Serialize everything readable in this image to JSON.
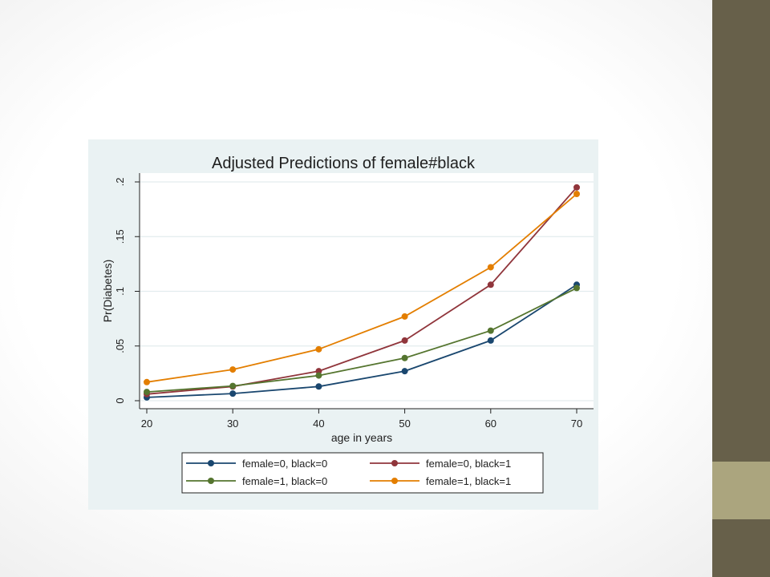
{
  "slide": {
    "band_color": "#67604a",
    "accent_color": "#aba57e"
  },
  "chart_data": {
    "type": "line",
    "title": "Adjusted Predictions of female#black",
    "xlabel": "age in years",
    "ylabel": "Pr(Diabetes)",
    "xlim": [
      20,
      70
    ],
    "ylim": [
      0,
      0.2
    ],
    "x_ticks": [
      20,
      30,
      40,
      50,
      60,
      70
    ],
    "y_ticks": [
      0,
      0.05,
      0.1,
      0.15,
      0.2
    ],
    "x_tick_labels": [
      "20",
      "30",
      "40",
      "50",
      "60",
      "70"
    ],
    "y_tick_labels": [
      "0",
      ".05",
      ".1",
      ".15",
      ".2"
    ],
    "grid": true,
    "legend_position": "bottom",
    "plot_background": "#ffffff",
    "outer_background": "#eaf2f3",
    "x": [
      20,
      30,
      40,
      50,
      60,
      70
    ],
    "series": [
      {
        "name": "female=0, black=0",
        "color": "#1a476f",
        "marker": "circle",
        "values": [
          0.003,
          0.0065,
          0.013,
          0.027,
          0.055,
          0.106
        ]
      },
      {
        "name": "female=0, black=1",
        "color": "#90353b",
        "marker": "circle",
        "values": [
          0.006,
          0.013,
          0.027,
          0.055,
          0.106,
          0.195
        ]
      },
      {
        "name": "female=1, black=0",
        "color": "#55752f",
        "marker": "circle",
        "values": [
          0.008,
          0.0135,
          0.023,
          0.039,
          0.064,
          0.103
        ]
      },
      {
        "name": "female=1, black=1",
        "color": "#e37e00",
        "marker": "circle",
        "values": [
          0.017,
          0.0285,
          0.047,
          0.077,
          0.122,
          0.189
        ]
      }
    ]
  }
}
